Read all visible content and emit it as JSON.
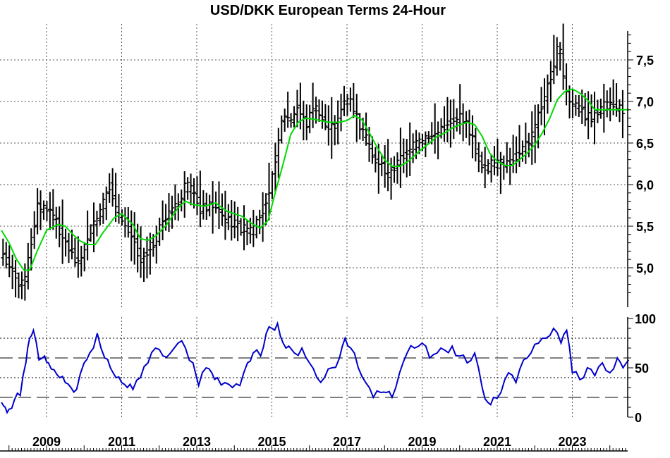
{
  "chart_data": [
    {
      "type": "line",
      "subtype": "ohlc-bar",
      "title": "USD/DKK European Terms 24-Hour",
      "x_range": [
        2007.8,
        2024.6
      ],
      "xticks": [
        "2009",
        "2011",
        "2013",
        "2015",
        "2017",
        "2019",
        "2021",
        "2023"
      ],
      "ylim": [
        4.65,
        7.85
      ],
      "yticks": [
        "5,0",
        "5,5",
        "6,0",
        "6,5",
        "7,0",
        "7,5"
      ],
      "grid": true,
      "price_samples": {
        "x": [
          2007.8,
          2008.0,
          2008.2,
          2008.4,
          2008.55,
          2008.75,
          2008.9,
          2009.1,
          2009.3,
          2009.5,
          2009.7,
          2009.9,
          2010.1,
          2010.3,
          2010.5,
          2010.7,
          2010.9,
          2011.1,
          2011.3,
          2011.5,
          2011.7,
          2011.9,
          2012.1,
          2012.3,
          2012.5,
          2012.7,
          2012.9,
          2013.1,
          2013.3,
          2013.5,
          2013.7,
          2013.9,
          2014.1,
          2014.3,
          2014.5,
          2014.7,
          2014.85,
          2015.0,
          2015.15,
          2015.3,
          2015.5,
          2015.7,
          2015.9,
          2016.1,
          2016.3,
          2016.5,
          2016.7,
          2016.9,
          2017.1,
          2017.3,
          2017.5,
          2017.7,
          2017.9,
          2018.1,
          2018.3,
          2018.5,
          2018.7,
          2018.9,
          2019.1,
          2019.3,
          2019.5,
          2019.7,
          2019.9,
          2020.1,
          2020.3,
          2020.5,
          2020.7,
          2020.9,
          2021.1,
          2021.3,
          2021.5,
          2021.7,
          2021.9,
          2022.1,
          2022.3,
          2022.5,
          2022.65,
          2022.75,
          2022.9,
          2023.1,
          2023.3,
          2023.5,
          2023.7,
          2023.9,
          2024.1,
          2024.3,
          2024.5
        ],
        "y": [
          5.15,
          5.05,
          4.85,
          4.8,
          5.2,
          5.75,
          5.7,
          5.7,
          5.5,
          5.3,
          5.15,
          5.05,
          5.4,
          5.55,
          5.75,
          6.0,
          5.6,
          5.55,
          5.35,
          5.1,
          5.2,
          5.35,
          5.55,
          5.7,
          5.75,
          6.0,
          5.9,
          5.7,
          5.75,
          5.75,
          5.6,
          5.55,
          5.5,
          5.45,
          5.45,
          5.6,
          5.85,
          6.05,
          6.5,
          6.85,
          6.75,
          6.95,
          6.7,
          6.95,
          6.8,
          6.7,
          6.7,
          7.0,
          7.0,
          6.75,
          6.55,
          6.3,
          6.25,
          6.1,
          6.25,
          6.35,
          6.45,
          6.5,
          6.55,
          6.6,
          6.65,
          6.75,
          6.8,
          6.8,
          6.6,
          6.3,
          6.2,
          6.25,
          6.25,
          6.25,
          6.35,
          6.45,
          6.55,
          6.85,
          7.1,
          7.45,
          7.7,
          7.3,
          7.0,
          6.95,
          6.85,
          6.8,
          6.9,
          6.95,
          6.95,
          6.9,
          6.9
        ]
      },
      "moving_average": {
        "color": "#00dd00",
        "x": [
          2007.8,
          2008.0,
          2008.2,
          2008.4,
          2008.55,
          2008.75,
          2009.0,
          2009.3,
          2009.5,
          2009.7,
          2009.9,
          2010.1,
          2010.3,
          2010.5,
          2010.8,
          2011.0,
          2011.3,
          2011.5,
          2011.7,
          2011.9,
          2012.2,
          2012.5,
          2012.7,
          2012.9,
          2013.2,
          2013.5,
          2013.8,
          2014.2,
          2014.5,
          2014.7,
          2014.9,
          2015.1,
          2015.3,
          2015.5,
          2015.7,
          2015.9,
          2016.2,
          2016.5,
          2016.8,
          2017.0,
          2017.2,
          2017.4,
          2017.6,
          2017.8,
          2018.0,
          2018.2,
          2018.4,
          2018.6,
          2018.8,
          2019.0,
          2019.2,
          2019.4,
          2019.6,
          2019.8,
          2020.0,
          2020.2,
          2020.4,
          2020.6,
          2020.8,
          2021.0,
          2021.2,
          2021.4,
          2021.6,
          2021.8,
          2022.0,
          2022.2,
          2022.4,
          2022.6,
          2022.8,
          2023.0,
          2023.2,
          2023.4,
          2023.6,
          2023.8,
          2024.0,
          2024.2,
          2024.4,
          2024.5
        ],
        "y": [
          5.45,
          5.3,
          5.1,
          4.97,
          4.97,
          5.2,
          5.45,
          5.52,
          5.5,
          5.4,
          5.32,
          5.28,
          5.28,
          5.42,
          5.6,
          5.65,
          5.52,
          5.35,
          5.33,
          5.38,
          5.52,
          5.72,
          5.8,
          5.76,
          5.74,
          5.78,
          5.68,
          5.62,
          5.52,
          5.48,
          5.57,
          5.92,
          6.25,
          6.6,
          6.75,
          6.8,
          6.78,
          6.75,
          6.75,
          6.77,
          6.83,
          6.78,
          6.62,
          6.45,
          6.3,
          6.22,
          6.22,
          6.27,
          6.35,
          6.43,
          6.5,
          6.58,
          6.62,
          6.68,
          6.72,
          6.75,
          6.72,
          6.58,
          6.38,
          6.28,
          6.23,
          6.23,
          6.3,
          6.38,
          6.48,
          6.62,
          6.8,
          7.02,
          7.12,
          7.15,
          7.1,
          7.02,
          6.9,
          6.9,
          6.9,
          6.9,
          6.9,
          6.9
        ]
      }
    },
    {
      "type": "line",
      "ylim": [
        0,
        100
      ],
      "yticks": [
        "0",
        "50",
        "100"
      ],
      "reference_lines": {
        "dotted": [
          40,
          80
        ],
        "dashed": [
          20,
          60
        ]
      },
      "series": [
        {
          "color": "#0000cc",
          "x": [
            2007.8,
            2007.9,
            2008.0,
            2008.15,
            2008.3,
            2008.45,
            2008.55,
            2008.65,
            2008.8,
            2008.95,
            2009.05,
            2009.2,
            2009.35,
            2009.5,
            2009.65,
            2009.8,
            2010.0,
            2010.15,
            2010.35,
            2010.55,
            2010.7,
            2010.85,
            2011.0,
            2011.15,
            2011.3,
            2011.5,
            2011.7,
            2011.9,
            2012.1,
            2012.3,
            2012.5,
            2012.7,
            2012.9,
            2013.05,
            2013.25,
            2013.4,
            2013.55,
            2013.75,
            2013.95,
            2014.15,
            2014.35,
            2014.5,
            2014.7,
            2014.85,
            2015.0,
            2015.15,
            2015.3,
            2015.45,
            2015.6,
            2015.8,
            2016.0,
            2016.2,
            2016.4,
            2016.6,
            2016.8,
            2016.95,
            2017.1,
            2017.3,
            2017.5,
            2017.7,
            2017.9,
            2018.05,
            2018.2,
            2018.4,
            2018.6,
            2018.8,
            2019.0,
            2019.2,
            2019.4,
            2019.6,
            2019.8,
            2020.0,
            2020.2,
            2020.4,
            2020.6,
            2020.75,
            2020.9,
            2021.1,
            2021.3,
            2021.5,
            2021.7,
            2021.9,
            2022.1,
            2022.3,
            2022.5,
            2022.7,
            2022.85,
            2023.0,
            2023.2,
            2023.4,
            2023.6,
            2023.8,
            2024.0,
            2024.2,
            2024.35,
            2024.5
          ],
          "y": [
            15,
            10,
            8,
            18,
            22,
            55,
            80,
            88,
            58,
            62,
            55,
            48,
            40,
            35,
            30,
            28,
            55,
            65,
            85,
            60,
            50,
            40,
            35,
            30,
            28,
            40,
            55,
            70,
            62,
            65,
            75,
            70,
            55,
            32,
            50,
            45,
            40,
            35,
            30,
            32,
            55,
            65,
            62,
            85,
            90,
            95,
            75,
            72,
            65,
            70,
            55,
            40,
            40,
            50,
            60,
            80,
            70,
            50,
            35,
            20,
            25,
            25,
            20,
            45,
            65,
            70,
            75,
            60,
            65,
            68,
            72,
            62,
            55,
            65,
            30,
            15,
            20,
            25,
            45,
            35,
            58,
            65,
            75,
            80,
            90,
            75,
            88,
            45,
            38,
            50,
            42,
            55,
            45,
            60,
            50,
            58
          ]
        }
      ]
    }
  ]
}
